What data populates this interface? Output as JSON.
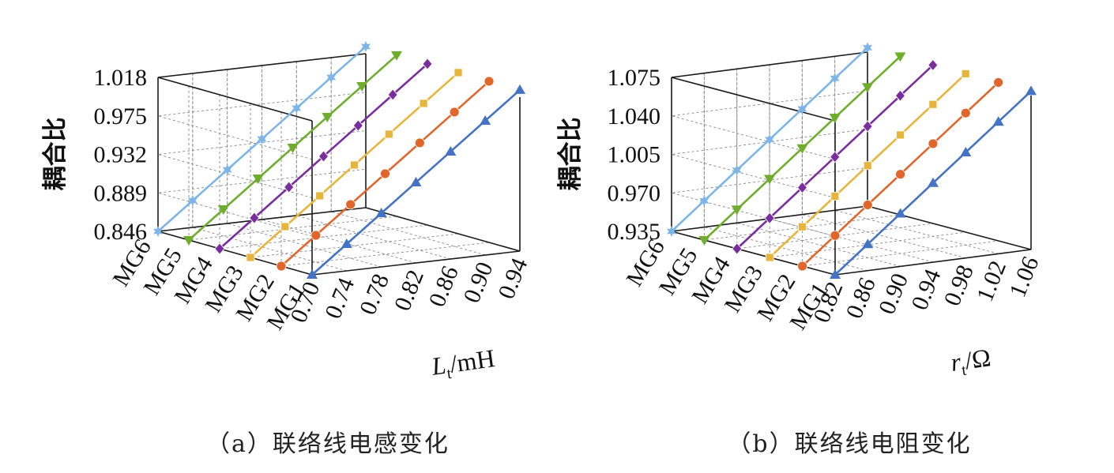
{
  "chart_data": [
    {
      "type": "line3d",
      "caption": "（a）联络线电感变化",
      "zlabel": "耦合比",
      "xlabel_main": "L",
      "xlabel_sub": "t",
      "xlabel_unit": "/mH",
      "x_ticks": [
        "0.70",
        "0.74",
        "0.78",
        "0.82",
        "0.86",
        "0.90",
        "0.94"
      ],
      "x_range": [
        0.7,
        0.94
      ],
      "z_ticks": [
        "0.846",
        "0.889",
        "0.932",
        "0.975",
        "1.018"
      ],
      "z_range": [
        0.846,
        1.018
      ],
      "categories": [
        "MG1",
        "MG2",
        "MG3",
        "MG4",
        "MG5",
        "MG6"
      ],
      "series": [
        {
          "name": "MG1",
          "color": "#4472c4",
          "marker": "triangle-up",
          "x": [
            0.7,
            0.74,
            0.78,
            0.82,
            0.86,
            0.9,
            0.94
          ],
          "values": [
            0.846,
            0.876,
            0.906,
            0.936,
            0.966,
            0.996,
            1.026
          ]
        },
        {
          "name": "MG2",
          "color": "#e0662b",
          "marker": "circle",
          "x": [
            0.7,
            0.74,
            0.78,
            0.82,
            0.86,
            0.9,
            0.94
          ],
          "values": [
            0.846,
            0.876,
            0.906,
            0.936,
            0.966,
            0.996,
            1.026
          ]
        },
        {
          "name": "MG3",
          "color": "#e8b53c",
          "marker": "square",
          "x": [
            0.7,
            0.74,
            0.78,
            0.82,
            0.86,
            0.9,
            0.94
          ],
          "values": [
            0.846,
            0.876,
            0.906,
            0.936,
            0.966,
            0.996,
            1.026
          ]
        },
        {
          "name": "MG4",
          "color": "#7a2d9c",
          "marker": "diamond",
          "x": [
            0.7,
            0.74,
            0.78,
            0.82,
            0.86,
            0.9,
            0.94
          ],
          "values": [
            0.846,
            0.876,
            0.906,
            0.936,
            0.966,
            0.996,
            1.026
          ]
        },
        {
          "name": "MG5",
          "color": "#6fad2d",
          "marker": "triangle-down",
          "x": [
            0.7,
            0.74,
            0.78,
            0.82,
            0.86,
            0.9,
            0.94
          ],
          "values": [
            0.846,
            0.876,
            0.906,
            0.936,
            0.966,
            0.996,
            1.026
          ]
        },
        {
          "name": "MG6",
          "color": "#7db5e8",
          "marker": "star",
          "x": [
            0.7,
            0.74,
            0.78,
            0.82,
            0.86,
            0.9,
            0.94
          ],
          "values": [
            0.846,
            0.876,
            0.906,
            0.936,
            0.966,
            0.996,
            1.026
          ]
        }
      ]
    },
    {
      "type": "line3d",
      "caption": "（b）联络线电阻变化",
      "zlabel": "耦合比",
      "xlabel_main": "r",
      "xlabel_sub": "t",
      "xlabel_unit": "/Ω",
      "x_ticks": [
        "0.82",
        "0.86",
        "0.90",
        "0.94",
        "0.98",
        "1.02",
        "1.06"
      ],
      "x_range": [
        0.82,
        1.06
      ],
      "z_ticks": [
        "0.935",
        "0.970",
        "1.005",
        "1.040",
        "1.075"
      ],
      "z_range": [
        0.935,
        1.075
      ],
      "categories": [
        "MG1",
        "MG2",
        "MG3",
        "MG4",
        "MG5",
        "MG6"
      ],
      "series": [
        {
          "name": "MG1",
          "color": "#4472c4",
          "marker": "triangle-up",
          "x": [
            0.82,
            0.86,
            0.9,
            0.94,
            0.98,
            1.02,
            1.06
          ],
          "values": [
            0.935,
            0.959,
            0.983,
            1.007,
            1.031,
            1.055,
            1.079
          ]
        },
        {
          "name": "MG2",
          "color": "#e0662b",
          "marker": "circle",
          "x": [
            0.82,
            0.86,
            0.9,
            0.94,
            0.98,
            1.02,
            1.06
          ],
          "values": [
            0.935,
            0.959,
            0.983,
            1.007,
            1.031,
            1.055,
            1.079
          ]
        },
        {
          "name": "MG3",
          "color": "#e8b53c",
          "marker": "square",
          "x": [
            0.82,
            0.86,
            0.9,
            0.94,
            0.98,
            1.02,
            1.06
          ],
          "values": [
            0.935,
            0.959,
            0.983,
            1.007,
            1.031,
            1.055,
            1.079
          ]
        },
        {
          "name": "MG4",
          "color": "#7a2d9c",
          "marker": "diamond",
          "x": [
            0.82,
            0.86,
            0.9,
            0.94,
            0.98,
            1.02,
            1.06
          ],
          "values": [
            0.935,
            0.959,
            0.983,
            1.007,
            1.031,
            1.055,
            1.079
          ]
        },
        {
          "name": "MG5",
          "color": "#6fad2d",
          "marker": "triangle-down",
          "x": [
            0.82,
            0.86,
            0.9,
            0.94,
            0.98,
            1.02,
            1.06
          ],
          "values": [
            0.935,
            0.959,
            0.983,
            1.007,
            1.031,
            1.055,
            1.079
          ]
        },
        {
          "name": "MG6",
          "color": "#7db5e8",
          "marker": "star",
          "x": [
            0.82,
            0.86,
            0.9,
            0.94,
            0.98,
            1.02,
            1.06
          ],
          "values": [
            0.935,
            0.959,
            0.983,
            1.007,
            1.031,
            1.055,
            1.079
          ]
        }
      ]
    }
  ]
}
